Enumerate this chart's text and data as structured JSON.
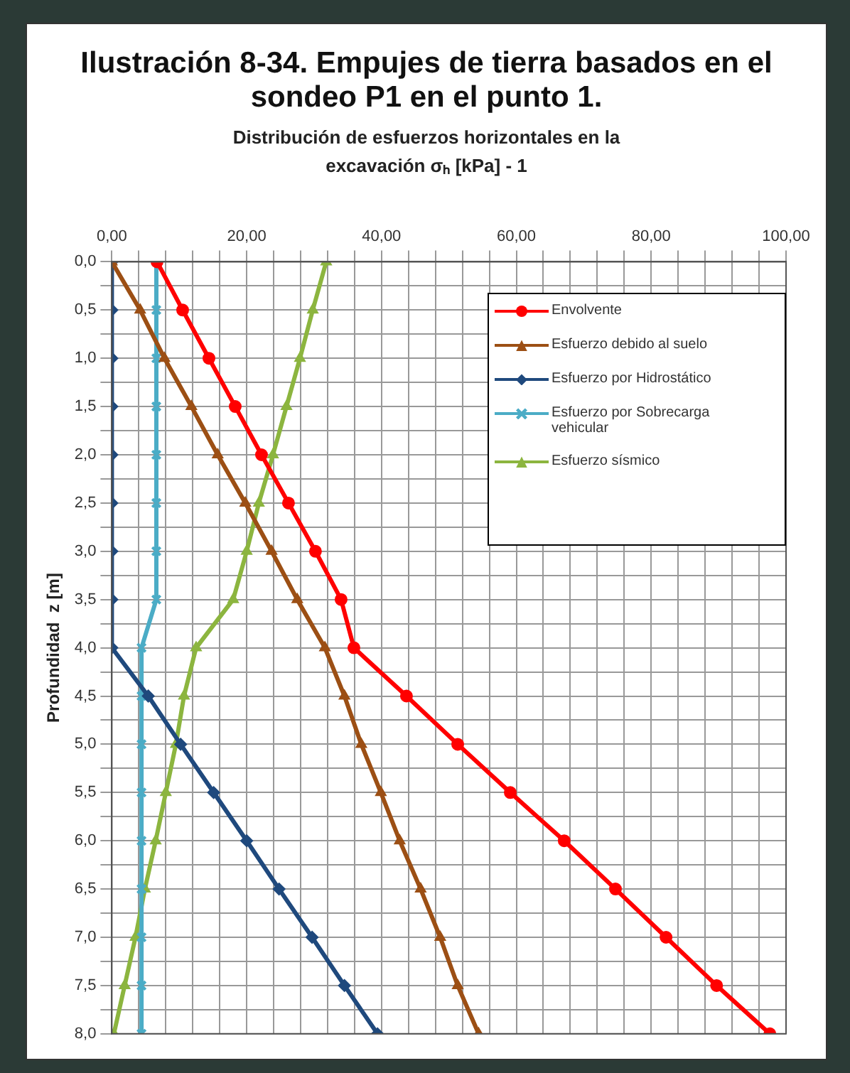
{
  "chart_data": {
    "type": "line",
    "title": "Ilustración 8-34. Empujes de tierra basados en el sondeo P1 en el punto 1.",
    "subtitle": "Distribución de esfuerzos horizontales en la excavación σₕ [kPa] - 1",
    "ylabel": "Profundidad  z [m]",
    "xlim": [
      0,
      100
    ],
    "ylim": [
      8,
      0
    ],
    "xticks": [
      {
        "value": 0,
        "label": "0,00"
      },
      {
        "value": 4,
        "label": null
      },
      {
        "value": 8,
        "label": null
      },
      {
        "value": 12,
        "label": null
      },
      {
        "value": 16,
        "label": null
      },
      {
        "value": 20,
        "label": "20,00"
      },
      {
        "value": 24,
        "label": null
      },
      {
        "value": 28,
        "label": null
      },
      {
        "value": 32,
        "label": null
      },
      {
        "value": 36,
        "label": null
      },
      {
        "value": 40,
        "label": "40,00"
      },
      {
        "value": 44,
        "label": null
      },
      {
        "value": 48,
        "label": null
      },
      {
        "value": 52,
        "label": null
      },
      {
        "value": 56,
        "label": null
      },
      {
        "value": 60,
        "label": "60,00"
      },
      {
        "value": 64,
        "label": null
      },
      {
        "value": 68,
        "label": null
      },
      {
        "value": 72,
        "label": null
      },
      {
        "value": 76,
        "label": null
      },
      {
        "value": 80,
        "label": "80,00"
      },
      {
        "value": 84,
        "label": null
      },
      {
        "value": 88,
        "label": null
      },
      {
        "value": 92,
        "label": null
      },
      {
        "value": 96,
        "label": null
      },
      {
        "value": 100,
        "label": "100,00"
      }
    ],
    "yticks": [
      {
        "value": 0,
        "label": "0,0"
      },
      {
        "value": 0.25,
        "label": null
      },
      {
        "value": 0.5,
        "label": "0,5"
      },
      {
        "value": 0.75,
        "label": null
      },
      {
        "value": 1,
        "label": "1,0"
      },
      {
        "value": 1.25,
        "label": null
      },
      {
        "value": 1.5,
        "label": "1,5"
      },
      {
        "value": 1.75,
        "label": null
      },
      {
        "value": 2,
        "label": "2,0"
      },
      {
        "value": 2.25,
        "label": null
      },
      {
        "value": 2.5,
        "label": "2,5"
      },
      {
        "value": 2.75,
        "label": null
      },
      {
        "value": 3,
        "label": "3,0"
      },
      {
        "value": 3.25,
        "label": null
      },
      {
        "value": 3.5,
        "label": "3,5"
      },
      {
        "value": 3.75,
        "label": null
      },
      {
        "value": 4,
        "label": "4,0"
      },
      {
        "value": 4.25,
        "label": null
      },
      {
        "value": 4.5,
        "label": "4,5"
      },
      {
        "value": 4.75,
        "label": null
      },
      {
        "value": 5,
        "label": "5,0"
      },
      {
        "value": 5.25,
        "label": null
      },
      {
        "value": 5.5,
        "label": "5,5"
      },
      {
        "value": 5.75,
        "label": null
      },
      {
        "value": 6,
        "label": "6,0"
      },
      {
        "value": 6.25,
        "label": null
      },
      {
        "value": 6.5,
        "label": "6,5"
      },
      {
        "value": 6.75,
        "label": null
      },
      {
        "value": 7,
        "label": "7,0"
      },
      {
        "value": 7.25,
        "label": null
      },
      {
        "value": 7.5,
        "label": "7,5"
      },
      {
        "value": 7.75,
        "label": null
      },
      {
        "value": 8,
        "label": "8,0"
      }
    ],
    "grid": true,
    "legend": "top right",
    "line_style": "solid",
    "series": [
      {
        "name": "Envolvente",
        "color": "#ff0000",
        "marker": "circle",
        "x": [
          6.7,
          10.5,
          14.4,
          18.3,
          22.2,
          26.2,
          30.2,
          34.0,
          35.9,
          43.7,
          51.3,
          59.1,
          67.1,
          74.7,
          82.2,
          89.7,
          97.6
        ],
        "values": [
          0,
          0.5,
          1,
          1.5,
          2,
          2.5,
          3,
          3.5,
          4,
          4.5,
          5,
          5.5,
          6,
          6.5,
          7,
          7.5,
          8
        ]
      },
      {
        "name": "Esfuerzo debido al suelo",
        "color": "#9c4f14",
        "marker": "triangle",
        "x": [
          0,
          4.2,
          7.8,
          11.8,
          15.7,
          19.8,
          23.7,
          27.5,
          31.6,
          34.5,
          37.0,
          39.9,
          42.7,
          45.8,
          48.7,
          51.3,
          54.4
        ],
        "values": [
          0,
          0.5,
          1,
          1.5,
          2,
          2.5,
          3,
          3.5,
          4,
          4.5,
          5,
          5.5,
          6,
          6.5,
          7,
          7.5,
          8
        ]
      },
      {
        "name": "Esfuerzo por Hidrostático",
        "color": "#1f497d",
        "marker": "diamond",
        "x": [
          0,
          0,
          0,
          0,
          0,
          0,
          0,
          0,
          0,
          5.4,
          10.2,
          15.1,
          20.0,
          24.8,
          29.7,
          34.5,
          39.4
        ],
        "values": [
          0,
          0.5,
          1,
          1.5,
          2,
          2.5,
          3,
          3.5,
          4,
          4.5,
          5,
          5.5,
          6,
          6.5,
          7,
          7.5,
          8
        ]
      },
      {
        "name": "Esfuerzo por Sobrecarga vehicular",
        "color": "#4bacc6",
        "marker": "cross",
        "x": [
          6.6,
          6.6,
          6.6,
          6.6,
          6.6,
          6.6,
          6.6,
          6.6,
          4.4,
          4.4,
          4.4,
          4.4,
          4.4,
          4.4,
          4.4,
          4.4,
          4.4
        ],
        "values": [
          0,
          0.5,
          1,
          1.5,
          2,
          2.5,
          3,
          3.5,
          4,
          4.5,
          5,
          5.5,
          6,
          6.5,
          7,
          7.5,
          8
        ]
      },
      {
        "name": "Esfuerzo sísmico",
        "color": "#8cb53f",
        "marker": "triangle",
        "x": [
          31.8,
          29.8,
          27.9,
          25.9,
          23.9,
          21.8,
          20.0,
          18.0,
          12.5,
          10.7,
          9.5,
          8.0,
          6.5,
          4.9,
          3.5,
          1.9,
          0.3
        ],
        "values": [
          0,
          0.5,
          1,
          1.5,
          2,
          2.5,
          3,
          3.5,
          4,
          4.5,
          5,
          5.5,
          6,
          6.5,
          7,
          7.5,
          8
        ]
      }
    ]
  }
}
